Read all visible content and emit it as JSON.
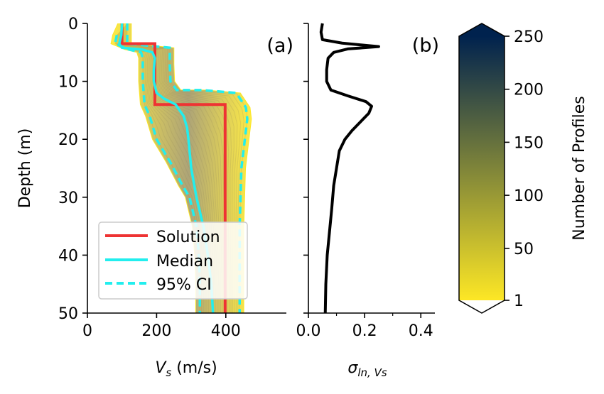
{
  "chart_data": [
    {
      "panel": "(a)",
      "type": "line",
      "xlabel": "V",
      "xlabel_sub": "s",
      "xlabel_unit": " (m/s)",
      "ylabel": "Depth (m)",
      "xlim": [
        0,
        575
      ],
      "ylim": [
        50,
        0
      ],
      "xticks": [
        0,
        200,
        400
      ],
      "yticks": [
        0,
        10,
        20,
        30,
        40,
        50
      ],
      "legend": {
        "position": "lower-left",
        "entries": [
          "Solution",
          "Median",
          "95% CI"
        ]
      },
      "series": [
        {
          "name": "Solution",
          "style": "solid",
          "color": "#ee3333",
          "points": [
            [
              100,
              0
            ],
            [
              100,
              3.5
            ],
            [
              195,
              3.5
            ],
            [
              195,
              14
            ],
            [
              398,
              14
            ],
            [
              398,
              50
            ]
          ]
        },
        {
          "name": "Median",
          "style": "solid",
          "color": "#22eeee",
          "points": [
            [
              100,
              0
            ],
            [
              98,
              2
            ],
            [
              92,
              3.5
            ],
            [
              100,
              4.2
            ],
            [
              158,
              4.5
            ],
            [
              188,
              5
            ],
            [
              195,
              6
            ],
            [
              192,
              8
            ],
            [
              192,
              10
            ],
            [
              200,
              12
            ],
            [
              222,
              13
            ],
            [
              255,
              14
            ],
            [
              278,
              16
            ],
            [
              288,
              18
            ],
            [
              292,
              20
            ],
            [
              300,
              25
            ],
            [
              315,
              30
            ],
            [
              335,
              35
            ],
            [
              348,
              40
            ],
            [
              358,
              45
            ],
            [
              363,
              50
            ]
          ]
        },
        {
          "name": "95% CI",
          "style": "dashed",
          "color": "#22eeee",
          "lines": [
            [
              [
                85,
                2
              ],
              [
                80,
                3.5
              ],
              [
                120,
                4.5
              ],
              [
                155,
                5
              ],
              [
                160,
                6
              ],
              [
                160,
                10
              ],
              [
                165,
                14
              ],
              [
                180,
                16
              ],
              [
                190,
                18
              ],
              [
                200,
                20
              ],
              [
                240,
                24
              ],
              [
                275,
                28
              ],
              [
                295,
                30
              ],
              [
                315,
                35
              ],
              [
                322,
                40
              ],
              [
                325,
                45
              ],
              [
                325,
                50
              ]
            ],
            [
              [
                115,
                0
              ],
              [
                115,
                3.5
              ],
              [
                170,
                3.8
              ],
              [
                238,
                4.2
              ],
              [
                238,
                7
              ],
              [
                240,
                10
              ],
              [
                258,
                11.5
              ],
              [
                330,
                11.5
              ],
              [
                430,
                12
              ],
              [
                458,
                14.5
              ],
              [
                462,
                16.5
              ],
              [
                455,
                20
              ],
              [
                445,
                25
              ],
              [
                440,
                35
              ],
              [
                440,
                45
              ],
              [
                440,
                50
              ]
            ]
          ]
        }
      ],
      "profile_cloud": {
        "label": "Number of Profiles",
        "color_low": "#fde725",
        "color_high": "#00224e"
      }
    },
    {
      "panel": "(b)",
      "type": "line",
      "xlabel": "σ",
      "xlabel_sub": "ln, Vs",
      "xlim": [
        0,
        0.45
      ],
      "ylim": [
        50,
        0
      ],
      "xticks": [
        0.0,
        0.2,
        0.4
      ],
      "xtick_labels": [
        "0.0",
        "0.2",
        "0.4"
      ],
      "series": [
        {
          "color": "#000000",
          "points": [
            [
              0.05,
              0
            ],
            [
              0.045,
              1.5
            ],
            [
              0.05,
              2.8
            ],
            [
              0.12,
              3.4
            ],
            [
              0.25,
              4
            ],
            [
              0.14,
              4.4
            ],
            [
              0.09,
              5
            ],
            [
              0.07,
              6
            ],
            [
              0.065,
              8
            ],
            [
              0.065,
              10
            ],
            [
              0.08,
              11.5
            ],
            [
              0.14,
              12.5
            ],
            [
              0.205,
              13.5
            ],
            [
              0.225,
              14.3
            ],
            [
              0.215,
              15.5
            ],
            [
              0.185,
              17
            ],
            [
              0.155,
              18.5
            ],
            [
              0.13,
              20
            ],
            [
              0.11,
              22
            ],
            [
              0.1,
              25
            ],
            [
              0.09,
              28
            ],
            [
              0.083,
              32
            ],
            [
              0.075,
              36
            ],
            [
              0.067,
              40
            ],
            [
              0.062,
              45
            ],
            [
              0.06,
              50
            ]
          ]
        }
      ]
    }
  ],
  "colorbar": {
    "label": "Number of Profiles",
    "ticks": [
      1,
      50,
      100,
      150,
      200,
      250
    ],
    "range": [
      1,
      250
    ],
    "extend": "both",
    "gradient": [
      "#fde725",
      "#c8b258",
      "#8f8e7a",
      "#5d6b86",
      "#2a477f",
      "#00224e"
    ]
  }
}
